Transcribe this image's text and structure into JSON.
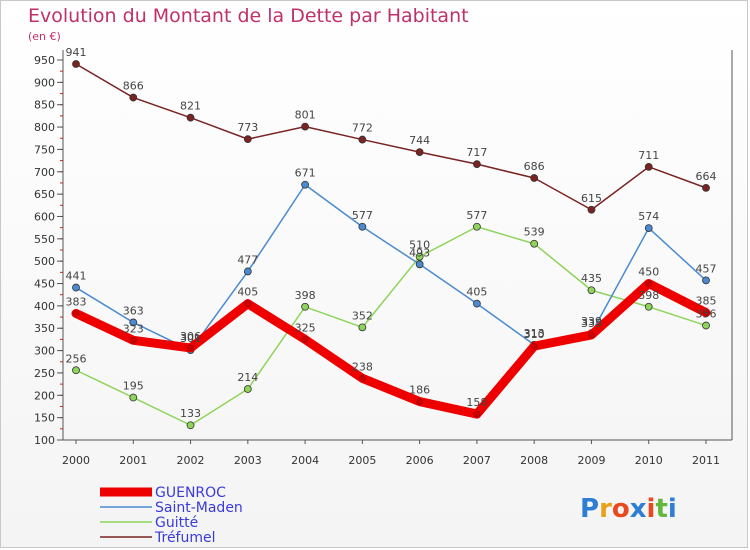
{
  "chart_data": {
    "type": "line",
    "title": "Evolution du Montant de la Dette par Habitant",
    "subtitle": "(en €)",
    "x": [
      "2000",
      "2001",
      "2002",
      "2003",
      "2004",
      "2005",
      "2006",
      "2007",
      "2008",
      "2009",
      "2010",
      "2011"
    ],
    "ylim": [
      100,
      950
    ],
    "yticks": [
      100,
      150,
      200,
      250,
      300,
      350,
      400,
      450,
      500,
      550,
      600,
      650,
      700,
      750,
      800,
      850,
      900,
      950
    ],
    "grid": false,
    "legend_position": "bottom-left",
    "series": [
      {
        "name": "GUENROC",
        "color": "#ee0000",
        "values": [
          383,
          323,
          306,
          405,
          325,
          238,
          186,
          158,
          310,
          335,
          450,
          385
        ]
      },
      {
        "name": "Saint-Maden",
        "color": "#4a8ad0",
        "values": [
          441,
          363,
          301,
          477,
          671,
          577,
          493,
          405,
          313,
          339,
          574,
          457
        ]
      },
      {
        "name": "Guitté",
        "color": "#8ed45a",
        "values": [
          256,
          195,
          133,
          214,
          398,
          352,
          510,
          577,
          539,
          435,
          398,
          356
        ]
      },
      {
        "name": "Tréfumel",
        "color": "#7a2323",
        "values": [
          941,
          866,
          821,
          773,
          801,
          772,
          744,
          717,
          686,
          615,
          711,
          664
        ]
      }
    ]
  },
  "logo": {
    "text": "Proxiti",
    "letter_colors": [
      "#2e7ed6",
      "#e8a21a",
      "#e8491e",
      "#2e7ed6",
      "#e8491e",
      "#63b83c",
      "#2e7ed6"
    ]
  }
}
